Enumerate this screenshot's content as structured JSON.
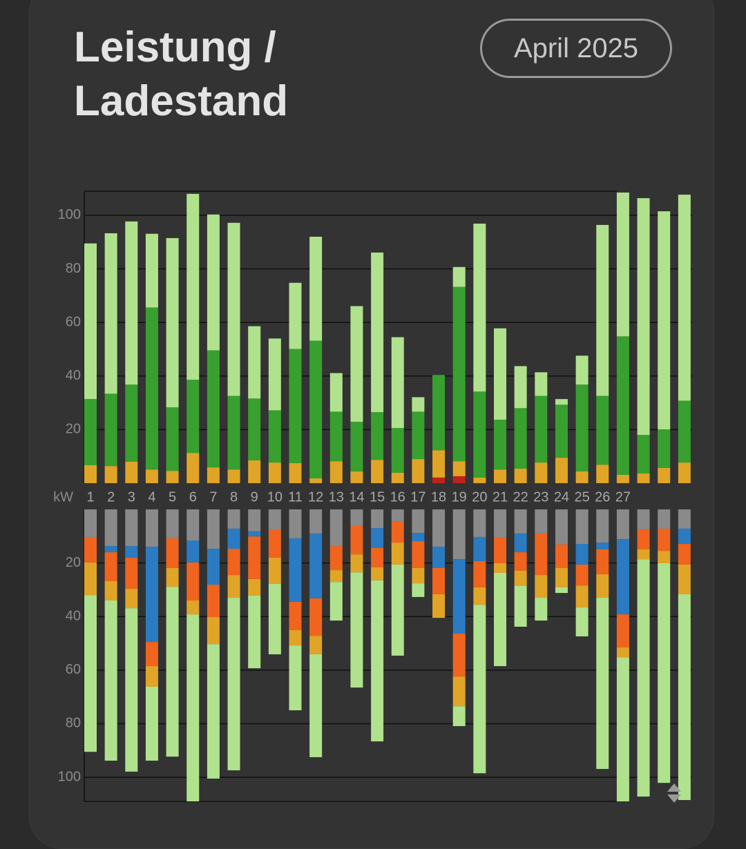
{
  "header": {
    "title": "Leistung / Ladestand",
    "period": "April 2025"
  },
  "chart_data": [
    {
      "type": "bar",
      "stacked": true,
      "unit_label": "kW",
      "categories": [
        "1",
        "2",
        "3",
        "4",
        "5",
        "6",
        "7",
        "8",
        "9",
        "10",
        "11",
        "12",
        "13",
        "14",
        "15",
        "16",
        "17",
        "18",
        "19",
        "20",
        "21",
        "22",
        "23",
        "24",
        "25",
        "26",
        "27",
        null,
        null,
        null
      ],
      "ylim": [
        0,
        109
      ],
      "yticks": [
        20,
        40,
        60,
        80,
        100
      ],
      "grid": true,
      "series": [
        {
          "color": "#c0211d",
          "values": [
            null,
            null,
            null,
            null,
            null,
            null,
            null,
            null,
            null,
            null,
            null,
            null,
            null,
            null,
            null,
            null,
            null,
            2.1,
            2.6,
            null,
            null,
            null,
            null,
            null,
            null,
            null,
            null,
            null,
            null,
            null
          ]
        },
        {
          "color": "#e0a526",
          "values": [
            6.7,
            6.4,
            8.0,
            5.1,
            4.6,
            11.3,
            5.9,
            5.1,
            8.5,
            7.7,
            7.5,
            1.8,
            8.2,
            4.4,
            8.7,
            3.9,
            9.0,
            10.2,
            5.6,
            2.1,
            5.1,
            5.4,
            7.7,
            9.5,
            4.4,
            6.9,
            3.1,
            3.6,
            5.7,
            7.7
          ]
        },
        {
          "color": "#38a02e",
          "values": [
            24.7,
            27.0,
            28.8,
            60.5,
            23.7,
            27.3,
            43.7,
            27.5,
            23.1,
            19.5,
            42.6,
            51.4,
            18.5,
            18.5,
            17.8,
            16.7,
            17.7,
            28.1,
            65.1,
            32.1,
            18.6,
            22.6,
            24.9,
            19.8,
            32.4,
            25.7,
            51.7,
            14.4,
            14.4,
            23.1
          ]
        },
        {
          "color": "#b0e28e",
          "values": [
            58.1,
            59.9,
            60.9,
            27.5,
            63.2,
            69.4,
            50.7,
            64.6,
            27.0,
            26.8,
            24.7,
            38.8,
            14.4,
            43.2,
            59.6,
            33.9,
            5.4,
            null,
            7.4,
            62.7,
            34.1,
            15.7,
            8.8,
            2.1,
            10.8,
            63.8,
            53.7,
            88.4,
            81.4,
            76.9
          ]
        }
      ]
    },
    {
      "type": "bar",
      "stacked": true,
      "inverted": true,
      "ylim": [
        0,
        109
      ],
      "yticks": [
        20,
        40,
        60,
        80,
        100
      ],
      "grid": true,
      "series": [
        {
          "color": "#8a8a8a",
          "values": [
            10.3,
            13.7,
            13.7,
            13.9,
            10.8,
            11.6,
            14.7,
            7.2,
            8.2,
            7.7,
            10.8,
            9.0,
            13.7,
            6.2,
            7.0,
            4.6,
            8.8,
            13.9,
            18.6,
            10.3,
            10.6,
            9.0,
            9.0,
            13.1,
            12.9,
            12.4,
            11.1,
            7.5,
            7.2,
            7.2
          ]
        },
        {
          "color": "#2a7bc2",
          "values": [
            null,
            2.3,
            4.3,
            35.6,
            null,
            8.2,
            13.4,
            7.5,
            1.9,
            null,
            23.7,
            24.2,
            null,
            null,
            7.4,
            null,
            3.1,
            8.0,
            27.8,
            9.0,
            null,
            7.0,
            null,
            null,
            7.7,
            2.5,
            28.1,
            null,
            null,
            5.7
          ]
        },
        {
          "color": "#f0641e",
          "values": [
            9.5,
            10.8,
            11.6,
            9.0,
            11.1,
            14.2,
            12.1,
            9.8,
            15.9,
            10.3,
            10.6,
            14.0,
            9.0,
            10.6,
            7.2,
            7.8,
            10.0,
            9.8,
            16.0,
            9.8,
            9.5,
            6.9,
            15.5,
            8.8,
            7.8,
            9.3,
            12.3,
            7.4,
            8.3,
            7.7
          ]
        },
        {
          "color": "#e0a526",
          "values": [
            12.2,
            7.2,
            7.3,
            7.7,
            7.0,
            5.2,
            10.1,
            8.5,
            6.2,
            9.8,
            5.7,
            6.9,
            4.4,
            6.7,
            4.9,
            8.2,
            5.7,
            8.8,
            11.1,
            6.5,
            3.6,
            5.7,
            8.5,
            7.2,
            8.2,
            8.8,
            3.7,
            3.7,
            4.6,
            11.1
          ]
        },
        {
          "color": "#b0e28e",
          "values": [
            58.5,
            59.8,
            61.0,
            27.6,
            63.4,
            69.8,
            50.2,
            64.4,
            27.1,
            26.3,
            24.2,
            38.4,
            14.4,
            43.0,
            60.1,
            34.0,
            5.1,
            null,
            7.4,
            62.9,
            34.8,
            15.2,
            8.5,
            2.1,
            10.8,
            63.9,
            53.8,
            88.6,
            82.0,
            76.8
          ]
        }
      ]
    }
  ]
}
